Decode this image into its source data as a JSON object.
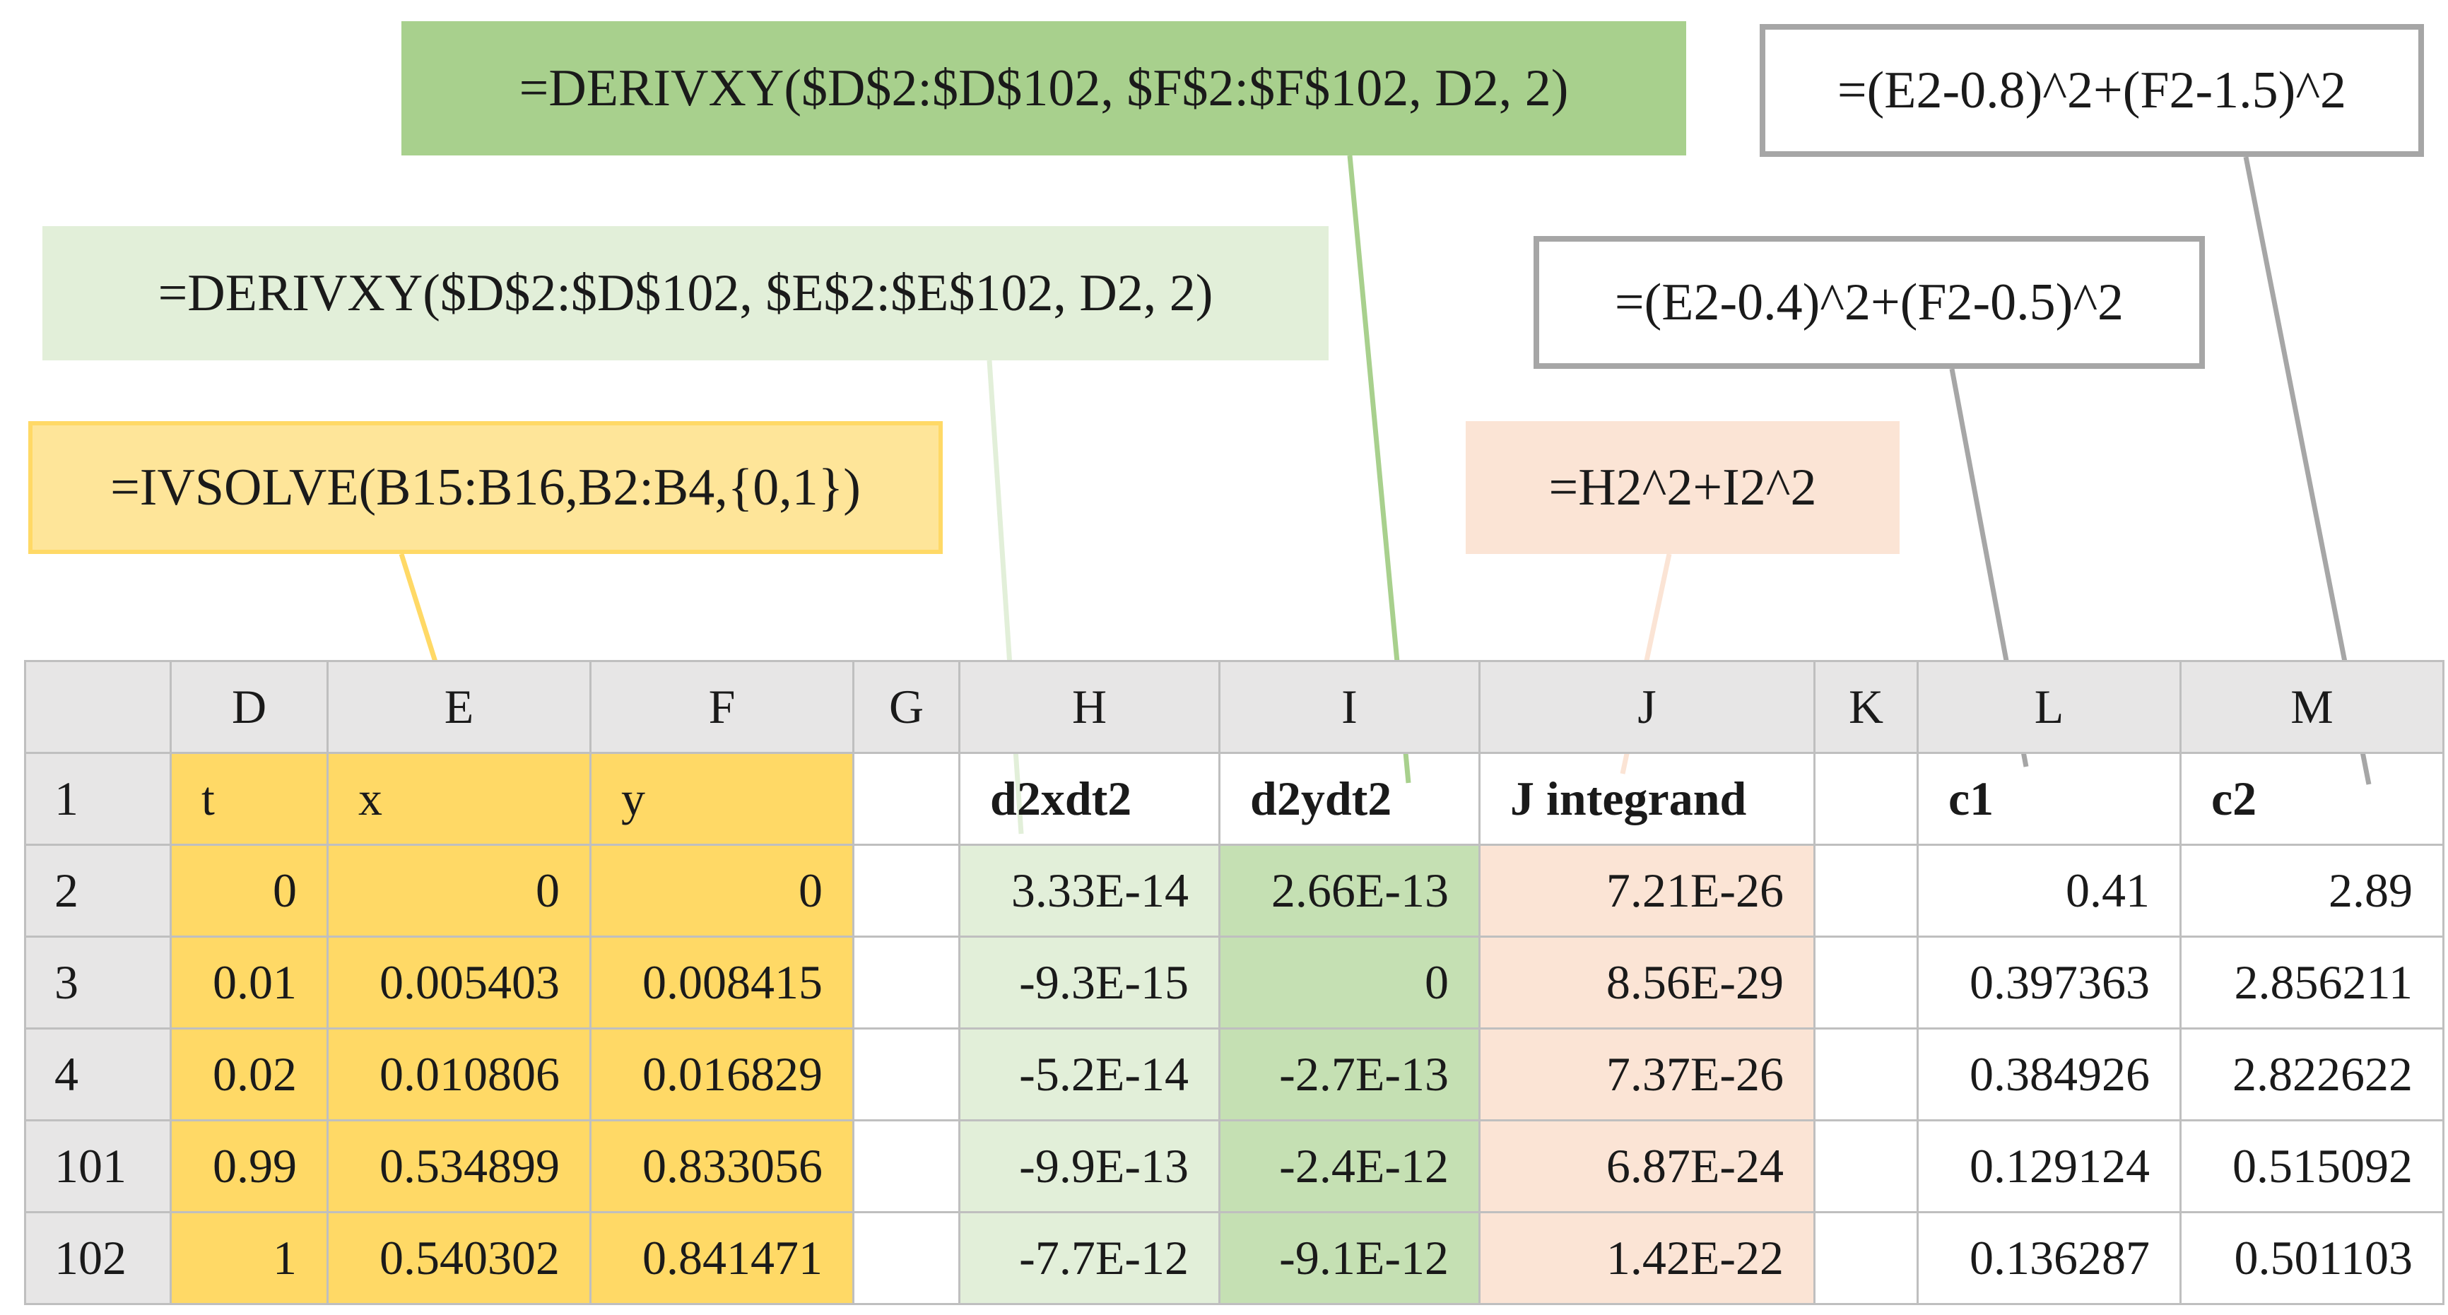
{
  "callouts": {
    "d2ydt2_formula": "=DERIVXY($D$2:$D$102, $F$2:$F$102, D2, 2)",
    "d2xdt2_formula": "=DERIVXY($D$2:$D$102, $E$2:$E$102, D2, 2)",
    "ivsolve_formula": "=IVSOLVE(B15:B16,B2:B4,{0,1})",
    "j_integrand_formula": "=H2^2+I2^2",
    "c2_formula": "=(E2-0.8)^2+(F2-1.5)^2",
    "c1_formula": "=(E2-0.4)^2+(F2-0.5)^2"
  },
  "sheet": {
    "columns": [
      "",
      "D",
      "E",
      "F",
      "G",
      "H",
      "I",
      "J",
      "K",
      "L",
      "M"
    ],
    "header_row": {
      "row": "1",
      "cells": [
        "t",
        "x",
        "y",
        "",
        "d2xdt2",
        "d2ydt2",
        "J integrand",
        "",
        "c1",
        "c2"
      ]
    },
    "rows": [
      {
        "row": "2",
        "cells": [
          "0",
          "0",
          "0",
          "",
          "3.33E-14",
          "2.66E-13",
          "7.21E-26",
          "",
          "0.41",
          "2.89"
        ]
      },
      {
        "row": "3",
        "cells": [
          "0.01",
          "0.005403",
          "0.008415",
          "",
          "-9.3E-15",
          "0",
          "8.56E-29",
          "",
          "0.397363",
          "2.856211"
        ]
      },
      {
        "row": "4",
        "cells": [
          "0.02",
          "0.010806",
          "0.016829",
          "",
          "-5.2E-14",
          "-2.7E-13",
          "7.37E-26",
          "",
          "0.384926",
          "2.822622"
        ]
      },
      {
        "row": "101",
        "cells": [
          "0.99",
          "0.534899",
          "0.833056",
          "",
          "-9.9E-13",
          "-2.4E-12",
          "6.87E-24",
          "",
          "0.129124",
          "0.515092"
        ]
      },
      {
        "row": "102",
        "cells": [
          "1",
          "0.540302",
          "0.841471",
          "",
          "-7.7E-12",
          "-9.1E-12",
          "1.42E-22",
          "",
          "0.136287",
          "0.501103"
        ]
      }
    ]
  },
  "colors": {
    "input_fill": "#ffd966",
    "d2xdt2_fill": "#e2efd9",
    "d2ydt2_fill": "#c5e0b3",
    "callout_y_fill": "#a8d08d",
    "j_fill": "#fbe4d5",
    "header_fill": "#e7e6e6",
    "gray_border": "#a6a6a6"
  }
}
